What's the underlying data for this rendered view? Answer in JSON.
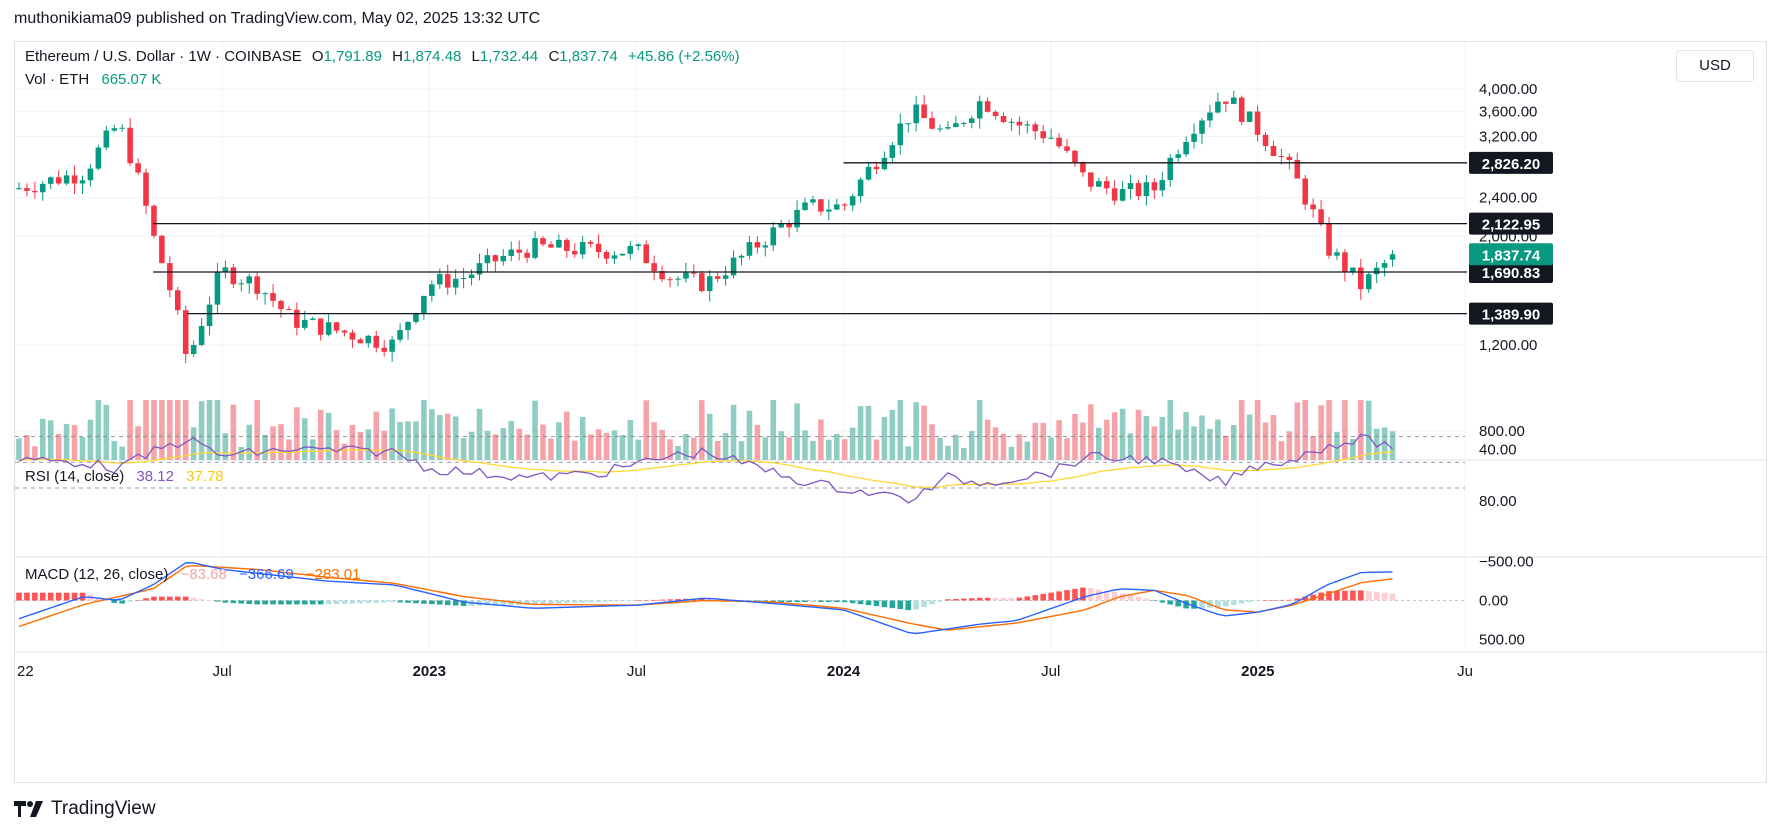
{
  "publisher": "muthonikiama09 published on TradingView.com, May 02, 2025 13:32 UTC",
  "brand": "TradingView",
  "currency_button": "USD",
  "legend": {
    "symbol": "Ethereum / U.S. Dollar · 1W · COINBASE",
    "o_label": "O",
    "o": "1,791.89",
    "h_label": "H",
    "h": "1,874.48",
    "l_label": "L",
    "l": "1,732.44",
    "c_label": "C",
    "c": "1,837.74",
    "change": "+45.86 (+2.56%)",
    "vol_label": "Vol · ETH",
    "vol": "665.07 K"
  },
  "rsi_legend": {
    "label": "RSI (14, close)",
    "rsi": "38.12",
    "ma": "37.78"
  },
  "macd_legend": {
    "label": "MACD (12, 26, close)",
    "hist": "−83.68",
    "macd": "−366.69",
    "signal": "−283.01"
  },
  "colors": {
    "up": "#089981",
    "down": "#f23645",
    "vol_up": "#8fcdc2",
    "vol_down": "#f5a3a8",
    "rsi_line": "#7e57c2",
    "rsi_ma": "#fdd835",
    "rsi_band": "#ede7f6",
    "macd_line": "#2962ff",
    "signal_line": "#ff6d00",
    "hist_up_strong": "#26a69a",
    "hist_up_weak": "#b2dfdb",
    "hist_down_strong": "#ff5252",
    "hist_down_weak": "#ffcdd2",
    "level_line": "#131722",
    "grid": "#f0f3fa"
  },
  "chart_data": {
    "type": "candlestick",
    "interval": "1W",
    "x_ticks": [
      "22",
      "Jul",
      "2023",
      "Jul",
      "2024",
      "Jul",
      "2025",
      "Ju"
    ],
    "price_axis": {
      "scale": "log",
      "ticks": [
        "4,000.00",
        "3,600.00",
        "3,200.00",
        "2,400.00",
        "2,000.00",
        "1,200.00",
        "800.00"
      ],
      "tick_values": [
        4000,
        3600,
        3200,
        2400,
        2000,
        1200,
        800
      ]
    },
    "last_price": {
      "value": 1837.74,
      "label": "1,837.74"
    },
    "horizontal_levels": [
      {
        "value": 2826.2,
        "label": "2,826.20",
        "x_start": "2024-01"
      },
      {
        "value": 2122.95,
        "label": "2,122.95",
        "x_start": "2022-05"
      },
      {
        "value": 1690.83,
        "label": "1,690.83",
        "x_start": "2022-05"
      },
      {
        "value": 1389.9,
        "label": "1,389.90",
        "x_start": "2022-06"
      }
    ],
    "close_path": [
      [
        "2022-01",
        2500
      ],
      [
        "2022-03",
        2700
      ],
      [
        "2022-04",
        3400
      ],
      [
        "2022-05",
        2000
      ],
      [
        "2022-06",
        1100
      ],
      [
        "2022-07",
        1700
      ],
      [
        "2022-08",
        1600
      ],
      [
        "2022-09",
        1350
      ],
      [
        "2022-10",
        1300
      ],
      [
        "2022-11",
        1250
      ],
      [
        "2022-12",
        1200
      ],
      [
        "2023-01",
        1600
      ],
      [
        "2023-02",
        1650
      ],
      [
        "2023-03",
        1800
      ],
      [
        "2023-04",
        1900
      ],
      [
        "2023-06",
        1870
      ],
      [
        "2023-07",
        1870
      ],
      [
        "2023-08",
        1650
      ],
      [
        "2023-09",
        1600
      ],
      [
        "2023-10",
        1800
      ],
      [
        "2023-11",
        2050
      ],
      [
        "2023-12",
        2300
      ],
      [
        "2024-01",
        2300
      ],
      [
        "2024-02",
        2900
      ],
      [
        "2024-03",
        3600
      ],
      [
        "2024-04",
        3200
      ],
      [
        "2024-05",
        3800
      ],
      [
        "2024-06",
        3400
      ],
      [
        "2024-07",
        3200
      ],
      [
        "2024-08",
        2600
      ],
      [
        "2024-09",
        2450
      ],
      [
        "2024-10",
        2500
      ],
      [
        "2024-11",
        3300
      ],
      [
        "2024-12",
        3900
      ],
      [
        "2025-01",
        3300
      ],
      [
        "2025-02",
        2700
      ],
      [
        "2025-03",
        1900
      ],
      [
        "2025-04",
        1580
      ],
      [
        "2025-05",
        1837.74
      ]
    ],
    "rsi_axis": {
      "ticks": [
        "80.00",
        "40.00"
      ],
      "tick_values": [
        80,
        40
      ],
      "band": [
        30,
        70
      ],
      "mid": 50
    },
    "rsi_path": [
      [
        "2022-01",
        48
      ],
      [
        "2022-03",
        50
      ],
      [
        "2022-04",
        55
      ],
      [
        "2022-05",
        42
      ],
      [
        "2022-06",
        32
      ],
      [
        "2022-07",
        45
      ],
      [
        "2022-09",
        40
      ],
      [
        "2022-12",
        42
      ],
      [
        "2023-01",
        55
      ],
      [
        "2023-04",
        62
      ],
      [
        "2023-06",
        58
      ],
      [
        "2023-08",
        45
      ],
      [
        "2023-09",
        42
      ],
      [
        "2023-11",
        58
      ],
      [
        "2023-12",
        66
      ],
      [
        "2024-03",
        79
      ],
      [
        "2024-04",
        62
      ],
      [
        "2024-05",
        66
      ],
      [
        "2024-07",
        58
      ],
      [
        "2024-08",
        46
      ],
      [
        "2024-10",
        48
      ],
      [
        "2024-11",
        58
      ],
      [
        "2024-12",
        66
      ],
      [
        "2025-01",
        52
      ],
      [
        "2025-02",
        48
      ],
      [
        "2025-03",
        37
      ],
      [
        "2025-04",
        32
      ],
      [
        "2025-05",
        38.12
      ]
    ],
    "macd_axis": {
      "ticks": [
        "500.00",
        "0.00",
        "−500.00"
      ],
      "tick_values": [
        500,
        0,
        -500
      ]
    },
    "macd_path": [
      [
        "2022-01",
        250
      ],
      [
        "2022-03",
        -50
      ],
      [
        "2022-04",
        0
      ],
      [
        "2022-05",
        -200
      ],
      [
        "2022-06",
        -500
      ],
      [
        "2022-07",
        -400
      ],
      [
        "2022-10",
        -250
      ],
      [
        "2022-12",
        -200
      ],
      [
        "2023-02",
        20
      ],
      [
        "2023-04",
        100
      ],
      [
        "2023-07",
        60
      ],
      [
        "2023-09",
        -30
      ],
      [
        "2023-11",
        40
      ],
      [
        "2024-01",
        120
      ],
      [
        "2024-03",
        430
      ],
      [
        "2024-05",
        300
      ],
      [
        "2024-06",
        260
      ],
      [
        "2024-08",
        -50
      ],
      [
        "2024-09",
        -150
      ],
      [
        "2024-10",
        -130
      ],
      [
        "2024-11",
        50
      ],
      [
        "2024-12",
        200
      ],
      [
        "2025-01",
        150
      ],
      [
        "2025-02",
        50
      ],
      [
        "2025-03",
        -200
      ],
      [
        "2025-04",
        -360
      ],
      [
        "2025-05",
        -366.69
      ]
    ],
    "signal_path": [
      [
        "2022-01",
        350
      ],
      [
        "2022-03",
        50
      ],
      [
        "2022-05",
        -150
      ],
      [
        "2022-06",
        -450
      ],
      [
        "2022-08",
        -400
      ],
      [
        "2022-10",
        -300
      ],
      [
        "2022-12",
        -220
      ],
      [
        "2023-02",
        -50
      ],
      [
        "2023-04",
        50
      ],
      [
        "2023-07",
        60
      ],
      [
        "2023-09",
        0
      ],
      [
        "2023-11",
        20
      ],
      [
        "2024-01",
        100
      ],
      [
        "2024-03",
        300
      ],
      [
        "2024-04",
        380
      ],
      [
        "2024-06",
        290
      ],
      [
        "2024-08",
        120
      ],
      [
        "2024-09",
        -50
      ],
      [
        "2024-10",
        -130
      ],
      [
        "2024-11",
        -60
      ],
      [
        "2024-12",
        120
      ],
      [
        "2025-01",
        150
      ],
      [
        "2025-02",
        60
      ],
      [
        "2025-03",
        -80
      ],
      [
        "2025-04",
        -230
      ],
      [
        "2025-05",
        -283.01
      ]
    ]
  }
}
